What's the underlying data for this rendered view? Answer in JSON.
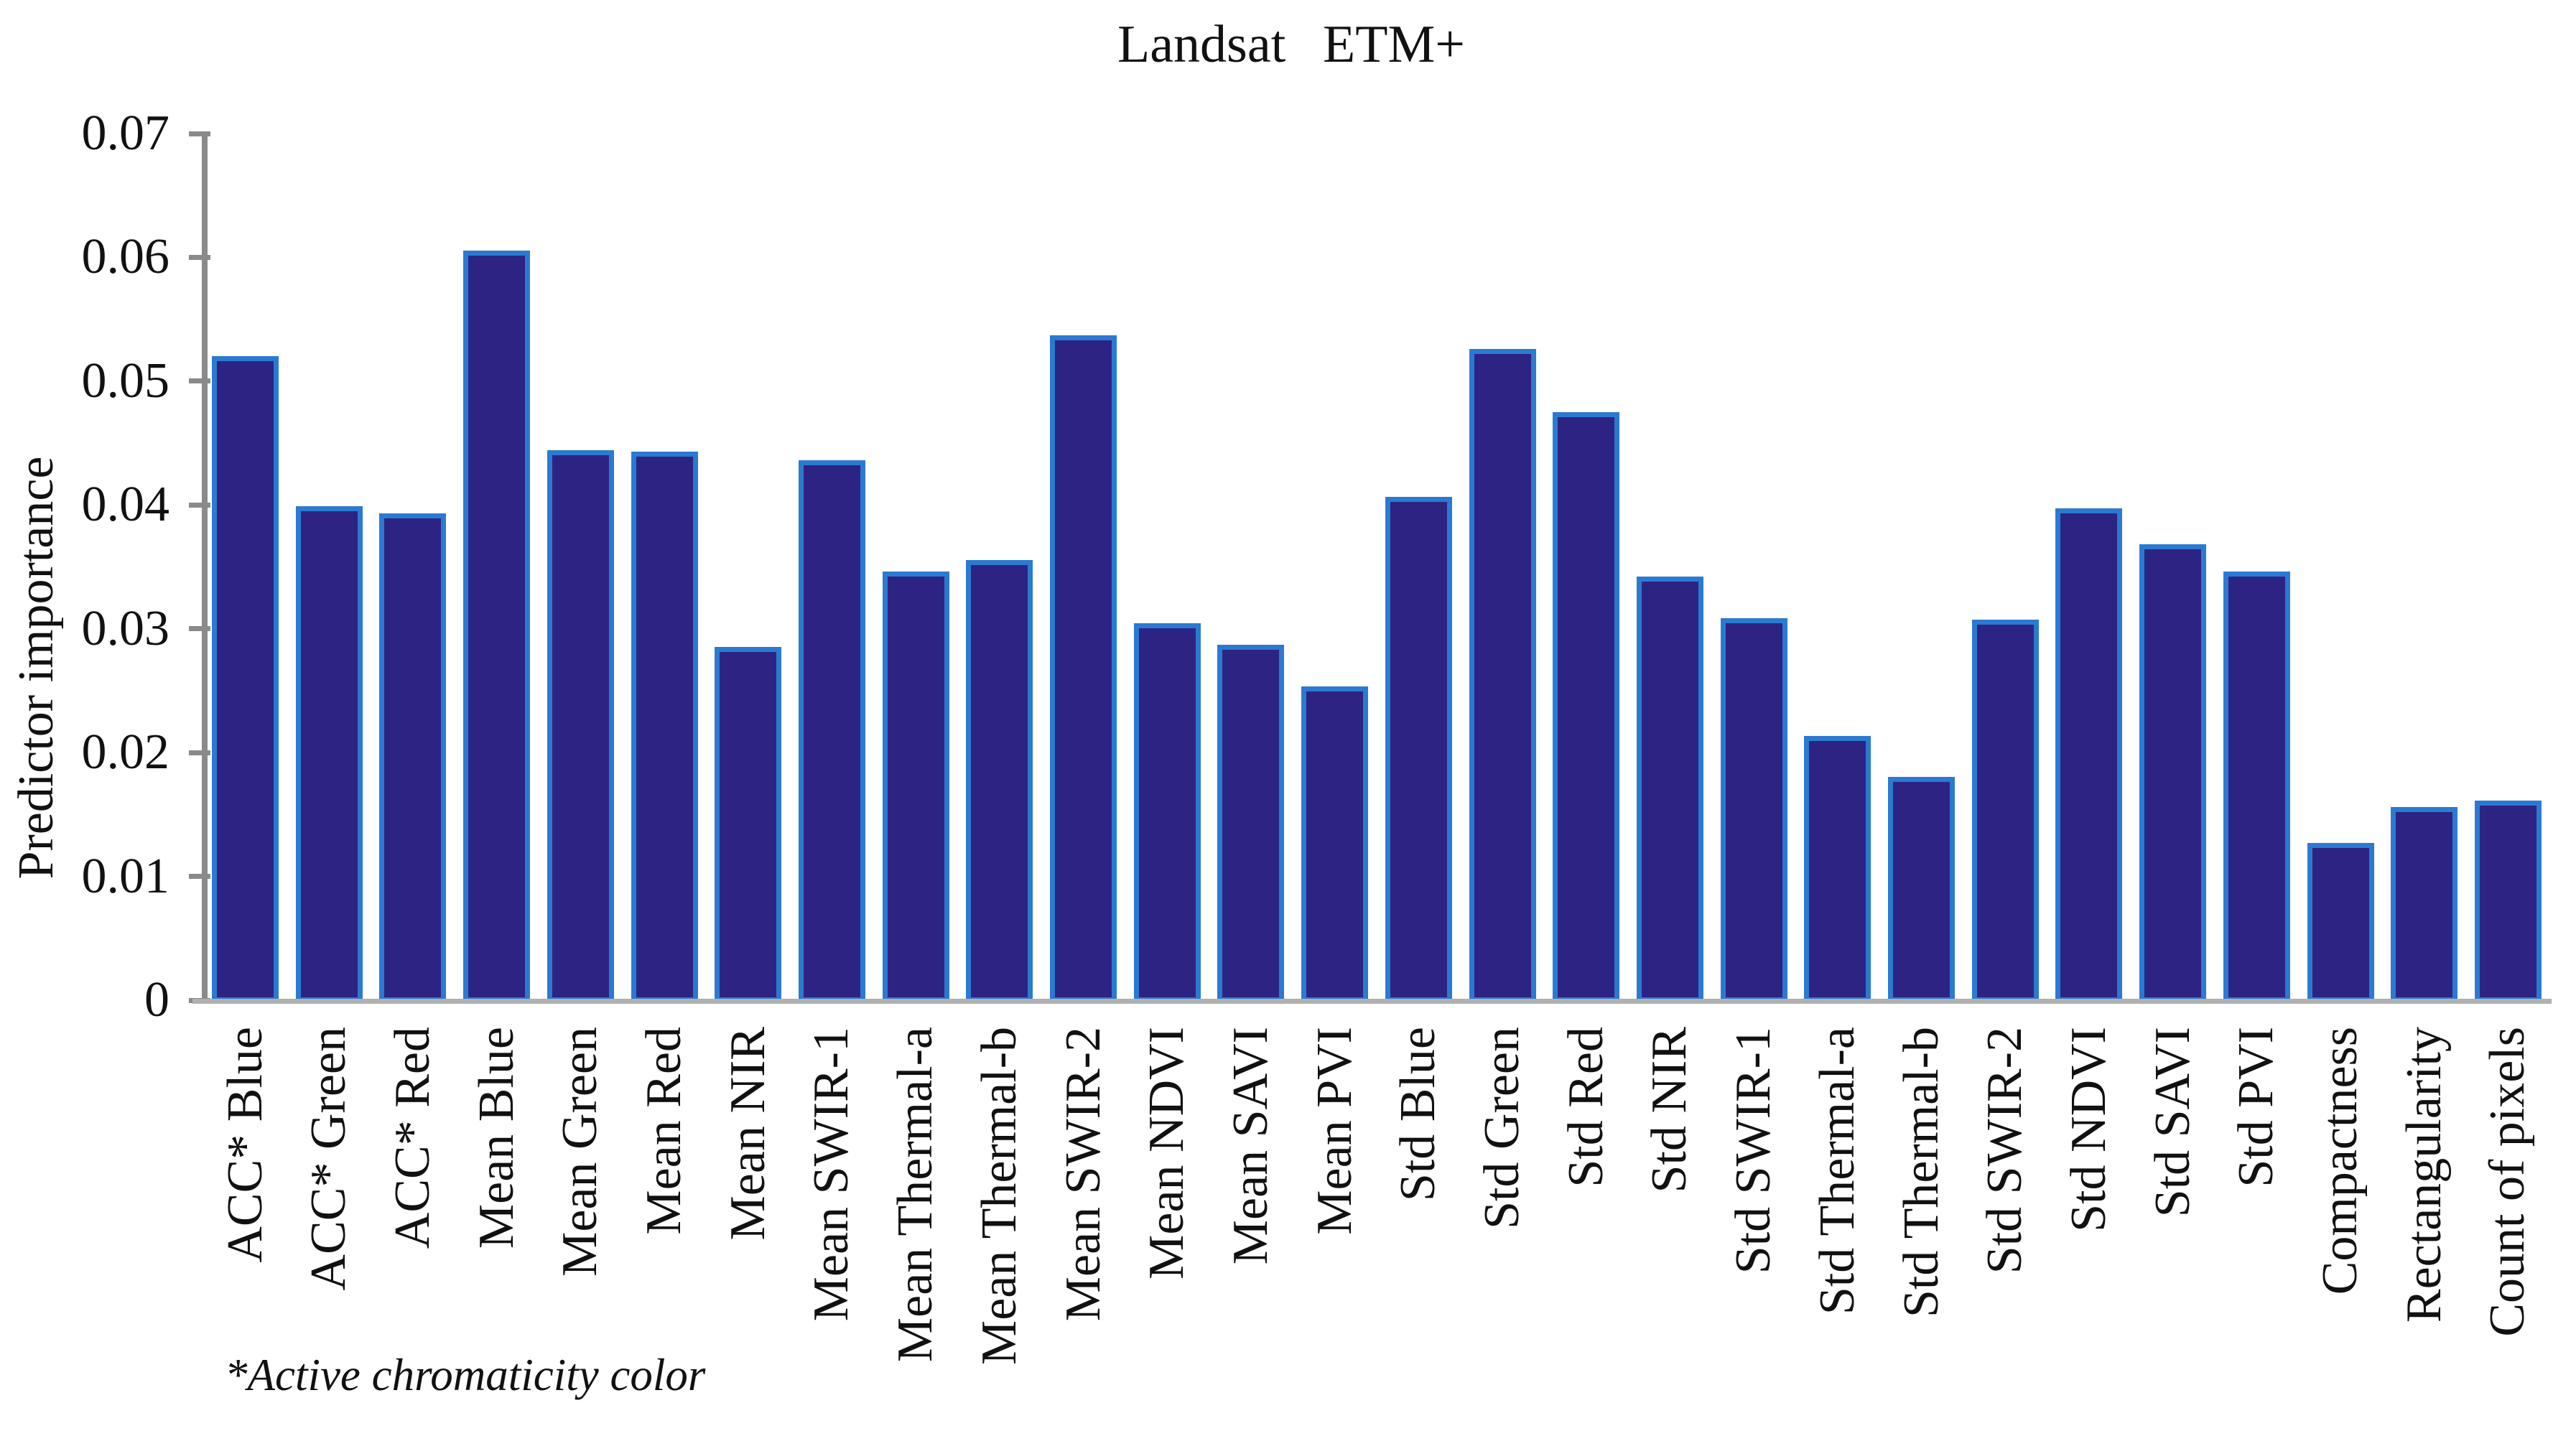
{
  "title": "Landsat ETM+",
  "footnote": "*Active chromaticity color",
  "chart_data": {
    "type": "bar",
    "title": "Landsat ETM+",
    "xlabel": "",
    "ylabel": "Predictor importance",
    "footnote": "*Active chromaticity color",
    "ylim": [
      0,
      0.07
    ],
    "ytick_step": 0.01,
    "ytick_labels": [
      "0",
      "0.01",
      "0.02",
      "0.03",
      "0.04",
      "0.05",
      "0.06",
      "0.07"
    ],
    "grid": false,
    "legend_position": "none",
    "categories": [
      "ACC* Blue",
      "ACC* Green",
      "ACC* Red",
      "Mean Blue",
      "Mean Green",
      "Mean Red",
      "Mean NIR",
      "Mean SWIR-1",
      "Mean Thermal-a",
      "Mean Thermal-b",
      "Mean SWIR-2",
      "Mean NDVI",
      "Mean SAVI",
      "Mean PVI",
      "Std Blue",
      "Std Green",
      "Std Red",
      "Std NIR",
      "Std SWIR-1",
      "Std Thermal-a",
      "Std Thermal-b",
      "Std SWIR-2",
      "Std NDVI",
      "Std SAVI",
      "Std PVI",
      "Compactness",
      "Rectangularity",
      "Count of pixels"
    ],
    "values": [
      0.0522,
      0.0401,
      0.0395,
      0.0607,
      0.0446,
      0.0445,
      0.0287,
      0.0438,
      0.0348,
      0.0357,
      0.0539,
      0.0306,
      0.0289,
      0.0255,
      0.0408,
      0.0528,
      0.0477,
      0.0344,
      0.031,
      0.0215,
      0.0182,
      0.0309,
      0.0399,
      0.037,
      0.0348,
      0.0129,
      0.0158,
      0.0163
    ],
    "colors": {
      "bar_fill": "#2d2383",
      "bar_edge": "#2b7ad2",
      "axis": "#8a8a8a",
      "baseline": "#b0b0b0",
      "text": "#111111"
    }
  }
}
